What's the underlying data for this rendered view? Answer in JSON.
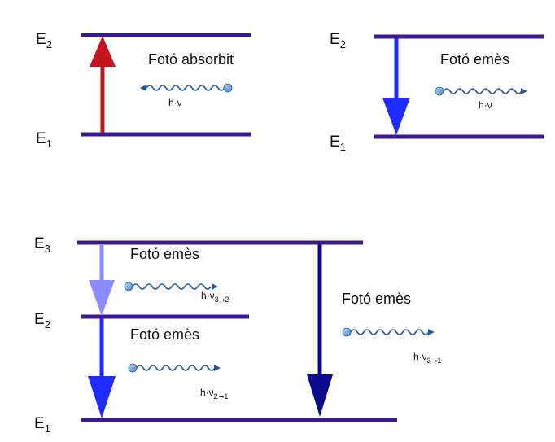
{
  "colors": {
    "level_line": "#3a1a8c",
    "absorption_arrow": "#c4141c",
    "emission_arrow": "#1f2cff",
    "emission_arrow_light": "#8a8cff",
    "emission_arrow_dark": "#0b0a8c",
    "photon": "#1f5aa8",
    "photon_ball": "#5f9ee0"
  },
  "panel_absorption": {
    "level_upper": {
      "letter": "E",
      "sub": "2"
    },
    "level_lower": {
      "letter": "E",
      "sub": "1"
    },
    "photon_label": "Fotó absorbit",
    "energy": {
      "base": "h·ν"
    }
  },
  "panel_emission": {
    "level_upper": {
      "letter": "E",
      "sub": "2"
    },
    "level_lower": {
      "letter": "E",
      "sub": "1"
    },
    "photon_label": "Fotó emès",
    "energy": {
      "base": "h·ν"
    }
  },
  "panel_cascade": {
    "level_top": {
      "letter": "E",
      "sub": "3"
    },
    "level_mid": {
      "letter": "E",
      "sub": "2"
    },
    "level_bottom": {
      "letter": "E",
      "sub": "1"
    },
    "photon_3_2": {
      "label": "Fotó emès",
      "base": "h·ν",
      "sub_from": "3",
      "sub_to": "2"
    },
    "photon_2_1": {
      "label": "Fotó emès",
      "base": "h·ν",
      "sub_from": "2",
      "sub_to": "1"
    },
    "photon_3_1": {
      "label": "Fotó emès",
      "base": "h·ν",
      "sub_from": "3",
      "sub_to": "1"
    }
  }
}
